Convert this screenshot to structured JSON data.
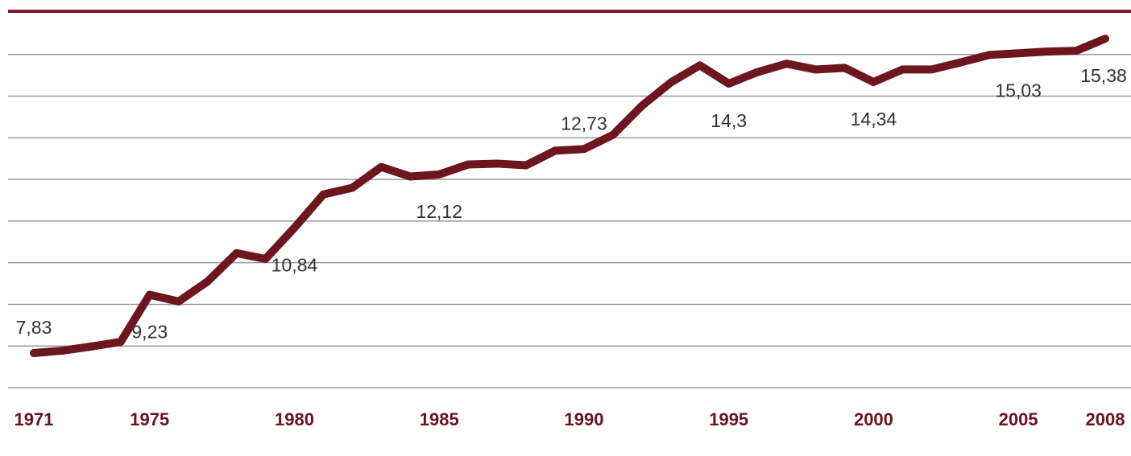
{
  "chart_data": {
    "type": "line",
    "x": [
      1971,
      1972,
      1973,
      1974,
      1975,
      1976,
      1977,
      1978,
      1979,
      1980,
      1981,
      1982,
      1983,
      1984,
      1985,
      1986,
      1987,
      1988,
      1989,
      1990,
      1991,
      1992,
      1993,
      1994,
      1995,
      1996,
      1997,
      1998,
      1999,
      2000,
      2001,
      2002,
      2003,
      2004,
      2005,
      2006,
      2007,
      2008
    ],
    "series": [
      {
        "color": "#6e1620",
        "values": [
          7.83,
          7.89,
          7.99,
          8.1,
          9.23,
          9.07,
          9.55,
          10.23,
          10.09,
          10.84,
          11.64,
          11.8,
          12.3,
          12.07,
          12.12,
          12.36,
          12.38,
          12.34,
          12.69,
          12.73,
          13.07,
          13.77,
          14.33,
          14.74,
          14.3,
          14.58,
          14.78,
          14.64,
          14.68,
          14.34,
          14.64,
          14.64,
          14.81,
          14.99,
          15.03,
          15.07,
          15.09,
          15.38
        ],
        "value_labels": [
          "7,83",
          null,
          null,
          null,
          "9,23",
          null,
          null,
          null,
          null,
          "10,84",
          null,
          null,
          null,
          null,
          "12,12",
          null,
          null,
          null,
          null,
          "12,73",
          null,
          null,
          null,
          null,
          "14,3",
          null,
          null,
          null,
          null,
          "14,34",
          null,
          null,
          null,
          null,
          "15,03",
          null,
          null,
          "15,38"
        ]
      }
    ],
    "xlim": [
      1971,
      2008
    ],
    "xticks": [
      1971,
      1975,
      1980,
      1985,
      1990,
      1995,
      2000,
      2005,
      2008
    ],
    "ylim": [
      6.73,
      16
    ],
    "yticks": [
      7,
      8,
      9,
      10,
      11,
      12,
      13,
      14,
      15
    ],
    "grid": true
  }
}
